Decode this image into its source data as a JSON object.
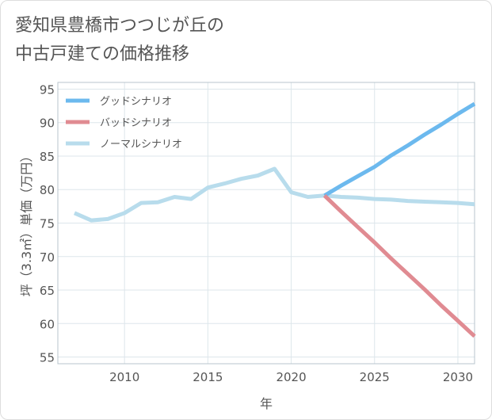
{
  "title_lines": [
    "愛知県豊橋市つつじが丘の",
    "中古戸建ての価格推移"
  ],
  "chart_data": {
    "type": "line",
    "xlabel": "年",
    "ylabel": "坪（3.3㎡）単価（万円）",
    "xlim": [
      2006,
      2031
    ],
    "ylim": [
      54,
      96
    ],
    "x_ticks": [
      2010,
      2015,
      2020,
      2025,
      2030
    ],
    "y_ticks": [
      55,
      60,
      65,
      70,
      75,
      80,
      85,
      90,
      95
    ],
    "grid": true,
    "legend_position": "top-left",
    "series": [
      {
        "name": "グッドシナリオ",
        "color": "#6cb9ee",
        "x": [
          2022,
          2023,
          2024,
          2025,
          2026,
          2027,
          2028,
          2029,
          2030,
          2031
        ],
        "y": [
          79.1,
          80.6,
          82.0,
          83.4,
          85.1,
          86.6,
          88.2,
          89.7,
          91.3,
          92.8
        ]
      },
      {
        "name": "バッドシナリオ",
        "color": "#e08b92",
        "x": [
          2022,
          2023,
          2024,
          2025,
          2026,
          2027,
          2028,
          2029,
          2030,
          2031
        ],
        "y": [
          79.1,
          76.7,
          74.4,
          72.1,
          69.7,
          67.4,
          65.1,
          62.7,
          60.4,
          58.1
        ]
      },
      {
        "name": "ノーマルシナリオ",
        "color": "#b8dcec",
        "x": [
          2007,
          2008,
          2009,
          2010,
          2011,
          2012,
          2013,
          2014,
          2015,
          2016,
          2017,
          2018,
          2019,
          2020,
          2021,
          2022,
          2023,
          2024,
          2025,
          2026,
          2027,
          2028,
          2029,
          2030,
          2031
        ],
        "y": [
          76.5,
          75.4,
          75.6,
          76.5,
          78.0,
          78.1,
          78.9,
          78.6,
          80.3,
          80.9,
          81.6,
          82.1,
          83.1,
          79.6,
          78.9,
          79.1,
          78.9,
          78.8,
          78.6,
          78.5,
          78.3,
          78.2,
          78.1,
          78.0,
          77.8
        ]
      }
    ]
  }
}
